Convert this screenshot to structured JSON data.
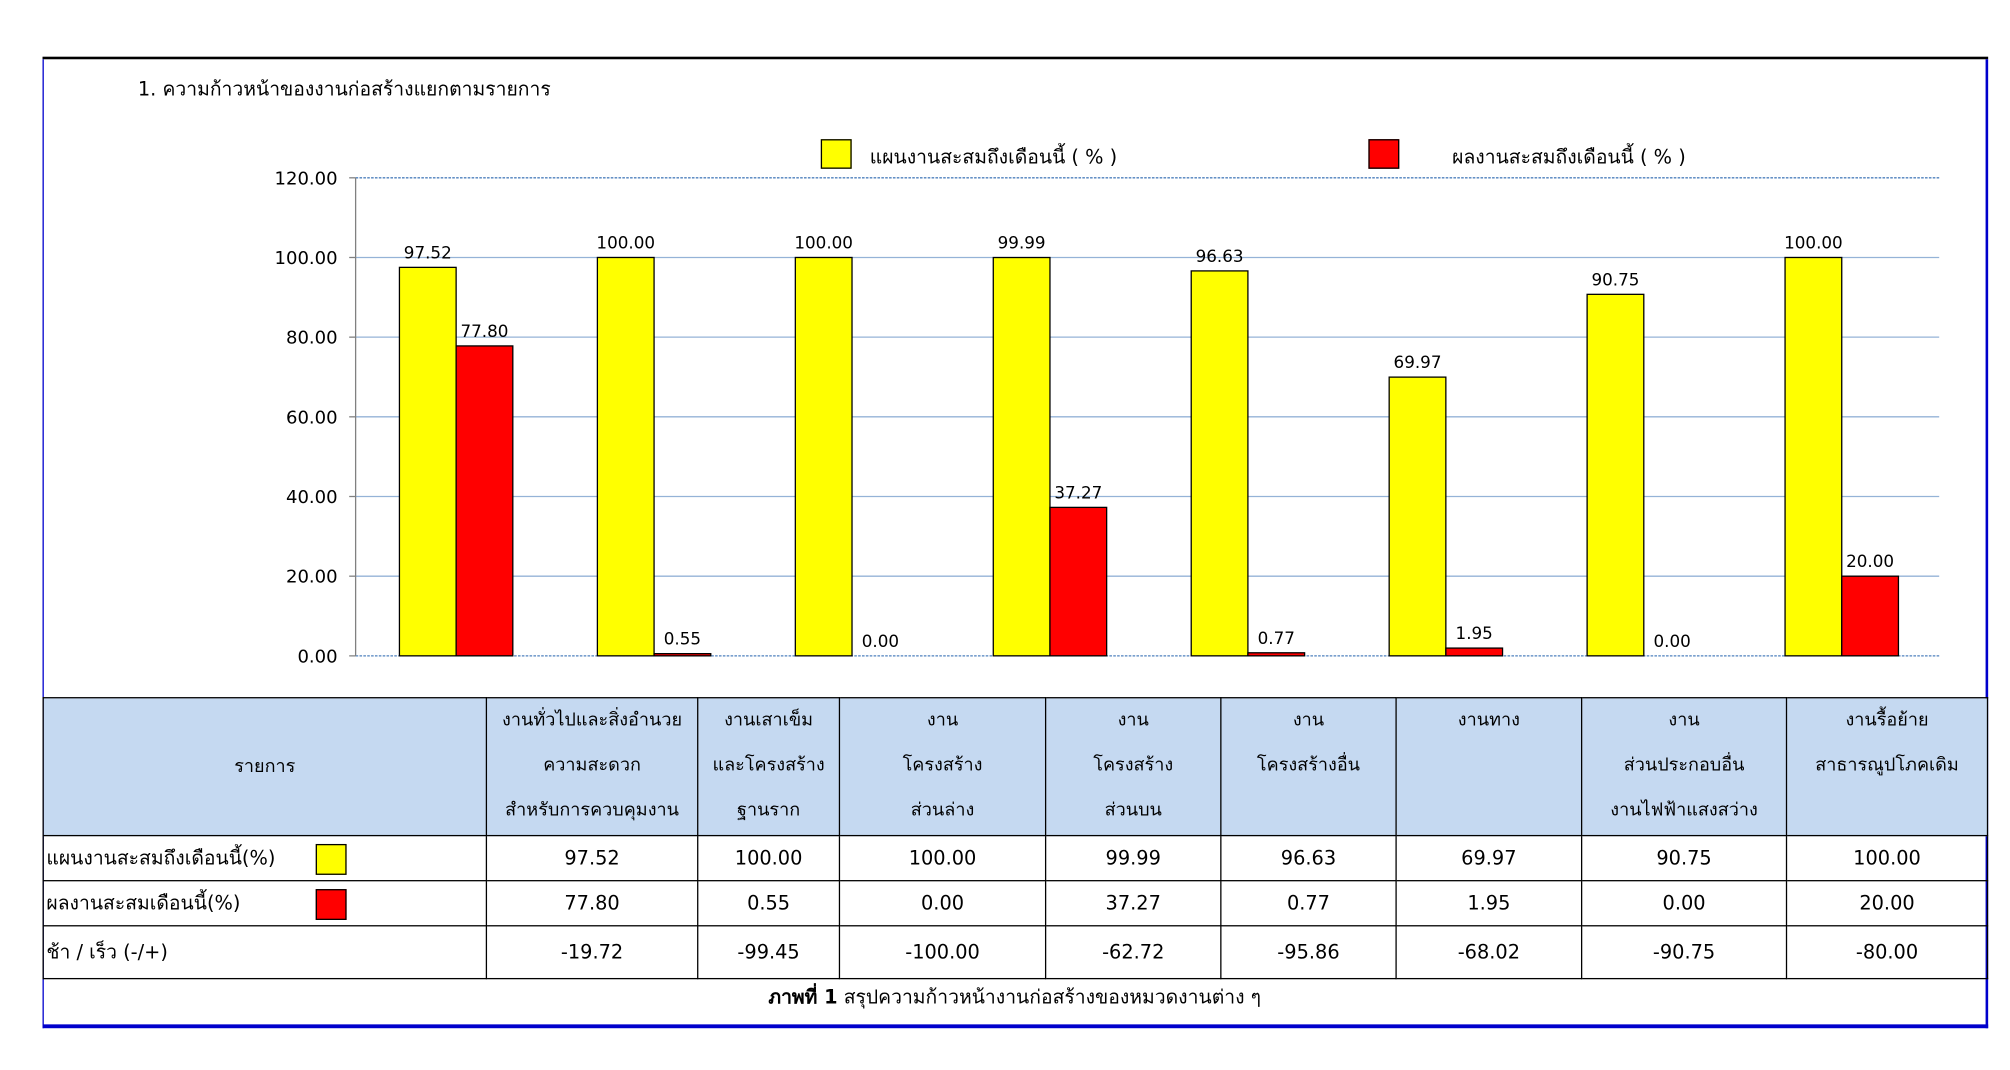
{
  "chart_data": {
    "type": "bar",
    "title": "1. ความก้าวหน้าของงานก่อสร้างแยกตามรายการ",
    "ylim": [
      0,
      120
    ],
    "yticks": [
      "0.00",
      "20.00",
      "40.00",
      "60.00",
      "80.00",
      "100.00",
      "120.00"
    ],
    "grid": true,
    "legend_placement": "top",
    "categories": [
      "งานทั่วไปและสิ่งอำนวยความสะดวกสำหรับการควบคุมงาน",
      "งานเสาเข็มและโครงสร้างฐานราก",
      "งานโครงสร้างส่วนล่าง",
      "งานโครงสร้างส่วนบน",
      "งานโครงสร้างอื่น",
      "งานทาง",
      "งานส่วนประกอบอื่นงานไฟฟ้าแสงสว่าง",
      "งานรื้อย้ายสาธารณูปโภคเดิม"
    ],
    "series": [
      {
        "name": "แผนงานสะสมถึงเดือนนี้ ( % )",
        "color": "#ffff00",
        "values": [
          97.52,
          100.0,
          100.0,
          99.99,
          96.63,
          69.97,
          90.75,
          100.0
        ],
        "labels": [
          "97.52",
          "100.00",
          "100.00",
          "99.99",
          "96.63",
          "69.97",
          "90.75",
          "100.00"
        ]
      },
      {
        "name": "ผลงานสะสมถึงเดือนนี้ ( % )",
        "color": "#ff0000",
        "values": [
          77.8,
          0.55,
          0.0,
          37.27,
          0.77,
          1.95,
          0.0,
          20.0
        ],
        "labels": [
          "77.80",
          "0.55",
          "0.00",
          "37.27",
          "0.77",
          "1.95",
          "0.00",
          "20.00"
        ]
      }
    ]
  },
  "table": {
    "header_label": "รายการ",
    "columns": [
      [
        "งานทั่วไปและสิ่งอำนวย",
        "ความสะดวก",
        "สำหรับการควบคุมงาน"
      ],
      [
        "งานเสาเข็ม",
        "และโครงสร้าง",
        "ฐานราก"
      ],
      [
        "งาน",
        "โครงสร้าง",
        "ส่วนล่าง"
      ],
      [
        "งาน",
        "โครงสร้าง",
        "ส่วนบน"
      ],
      [
        "งาน",
        "โครงสร้างอื่น",
        ""
      ],
      [
        "งานทาง",
        "",
        ""
      ],
      [
        "งาน",
        "ส่วนประกอบอื่น",
        "งานไฟฟ้าแสงสว่าง"
      ],
      [
        "งานรื้อย้าย",
        "สาธารณูปโภคเดิม",
        ""
      ]
    ],
    "rows": [
      {
        "label": "แผนงานสะสมถึงเดือนนี้(%)",
        "color": "#ffff00",
        "values": [
          "97.52",
          "100.00",
          "100.00",
          "99.99",
          "96.63",
          "69.97",
          "90.75",
          "100.00"
        ]
      },
      {
        "label": "ผลงานสะสมเดือนนี้(%)",
        "color": "#ff0000",
        "values": [
          "77.80",
          "0.55",
          "0.00",
          "37.27",
          "0.77",
          "1.95",
          "0.00",
          "20.00"
        ]
      },
      {
        "label": "ช้า / เร็ว  (-/+)",
        "values": [
          "-19.72",
          "-99.45",
          "-100.00",
          "-62.72",
          "-95.86",
          "-68.02",
          "-90.75",
          "-80.00"
        ]
      }
    ]
  },
  "caption": {
    "bold": "ภาพที่ 1",
    "text": " สรุปความก้าวหน้างานก่อสร้างของหมวดงานต่าง ๆ"
  }
}
